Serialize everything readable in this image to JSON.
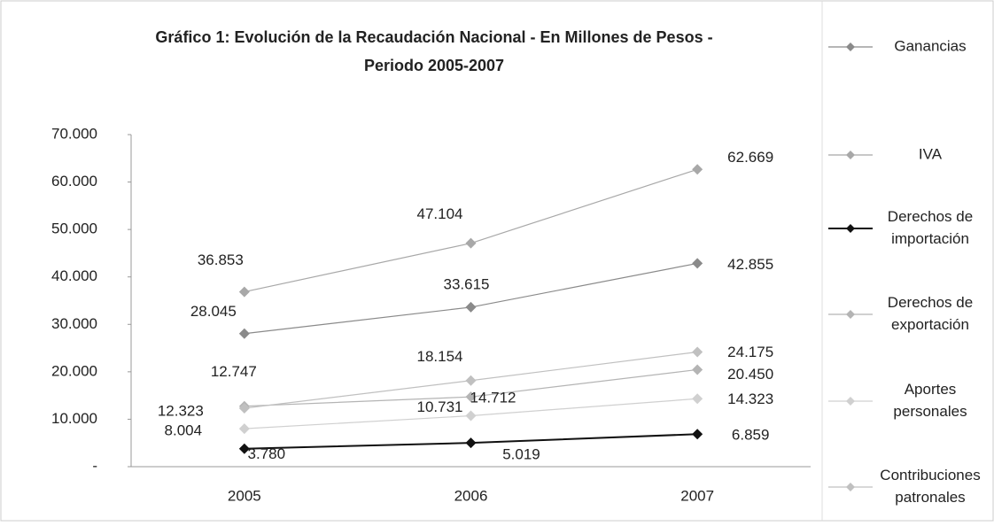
{
  "chart_data": {
    "type": "line",
    "title": "Gráfico 1: Evolución de la Recaudación Nacional - En Millones de Pesos -",
    "subtitle": "Periodo 2005-2007",
    "categories": [
      "2005",
      "2006",
      "2007"
    ],
    "ylim": [
      0,
      70000
    ],
    "yticks": [
      {
        "value": 0,
        "label": "-"
      },
      {
        "value": 10000,
        "label": "10.000"
      },
      {
        "value": 20000,
        "label": "20.000"
      },
      {
        "value": 30000,
        "label": "30.000"
      },
      {
        "value": 40000,
        "label": "40.000"
      },
      {
        "value": 50000,
        "label": "50.000"
      },
      {
        "value": 60000,
        "label": "60.000"
      },
      {
        "value": 70000,
        "label": "70.000"
      }
    ],
    "legend": "right",
    "series": [
      {
        "name": "Ganancias",
        "color": "#8a8a8a",
        "values": [
          28045,
          33615,
          42855
        ],
        "value_labels": [
          "28.045",
          "33.615",
          "42.855"
        ]
      },
      {
        "name": "IVA",
        "color": "#a8a8a8",
        "values": [
          36853,
          47104,
          62669
        ],
        "value_labels": [
          "36.853",
          "47.104",
          "62.669"
        ]
      },
      {
        "name": "Derechos de importación",
        "color": "#111111",
        "values": [
          3780,
          5019,
          6859
        ],
        "value_labels": [
          "3.780",
          "5.019",
          "6.859"
        ]
      },
      {
        "name": "Derechos de exportación",
        "color": "#b4b4b4",
        "values": [
          12747,
          14712,
          20450
        ],
        "value_labels": [
          "12.747",
          "14.712",
          "20.450"
        ]
      },
      {
        "name": "Aportes personales",
        "color": "#d0d0d0",
        "values": [
          8004,
          10731,
          14323
        ],
        "value_labels": [
          "8.004",
          "10.731",
          "14.323"
        ]
      },
      {
        "name": "Contribuciones patronales",
        "color": "#c0c0c0",
        "values": [
          12323,
          18154,
          24175
        ],
        "value_labels": [
          "12.323",
          "18.154",
          "24.175"
        ]
      }
    ]
  }
}
